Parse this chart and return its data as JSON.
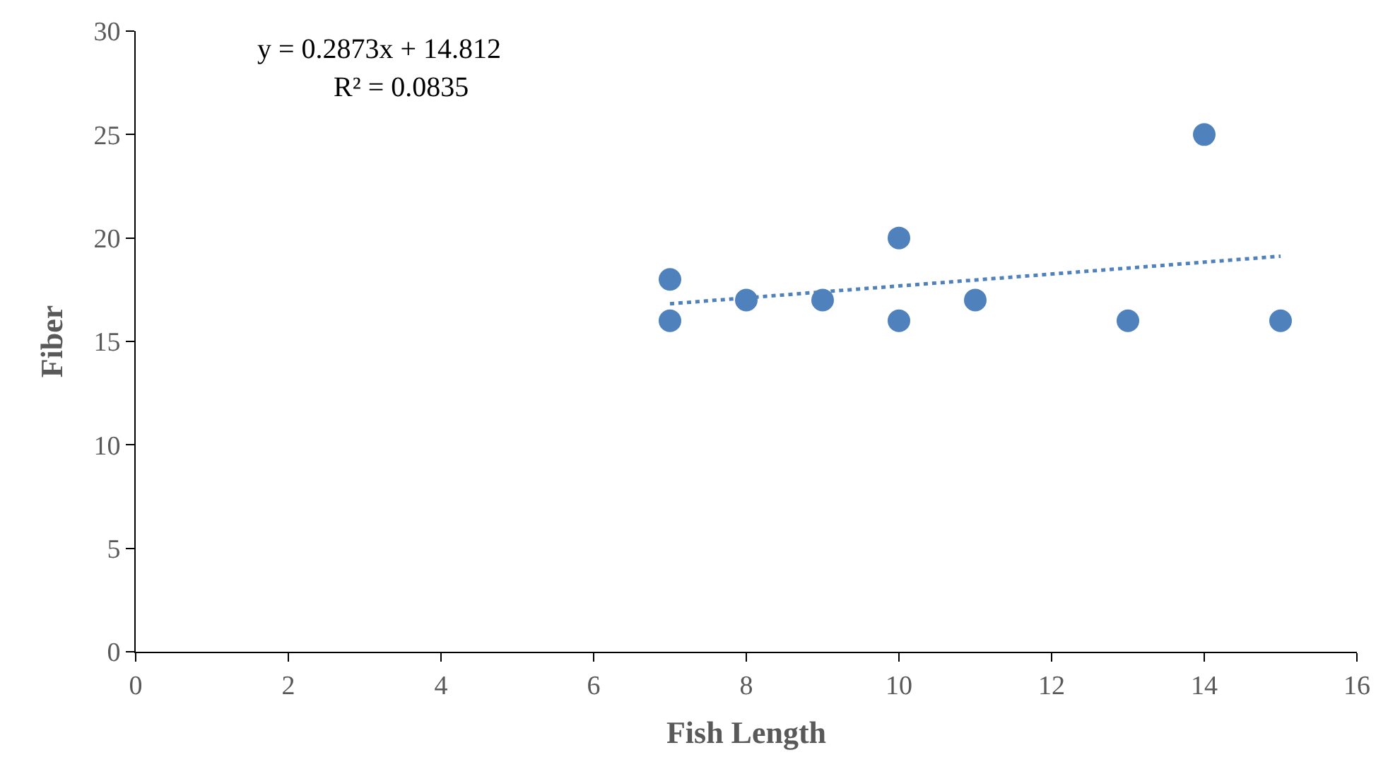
{
  "chart_data": {
    "type": "scatter",
    "xlabel": "Fish Length",
    "ylabel": "Fiber",
    "annotations": [
      "y = 0.2873x + 14.812",
      "R² = 0.0835"
    ],
    "series": [
      {
        "color": "#4f81bd",
        "marker": "circle",
        "x": [
          7,
          7,
          8,
          9,
          10,
          10,
          11,
          13,
          14,
          15
        ],
        "values": [
          18,
          16,
          17,
          17,
          20,
          16,
          17,
          16,
          25,
          16
        ]
      },
      {
        "type": "line",
        "color": "#4f81bd",
        "line_style": "dotted",
        "marker": "none",
        "x": [
          7,
          15
        ],
        "values": [
          16.82,
          19.12
        ]
      }
    ],
    "xlim": [
      0,
      16
    ],
    "xticks": [
      0,
      2,
      4,
      6,
      8,
      10,
      12,
      14,
      16
    ],
    "ylim": [
      0,
      30
    ],
    "yticks": [
      0,
      5,
      10,
      15,
      20,
      25,
      30
    ]
  }
}
